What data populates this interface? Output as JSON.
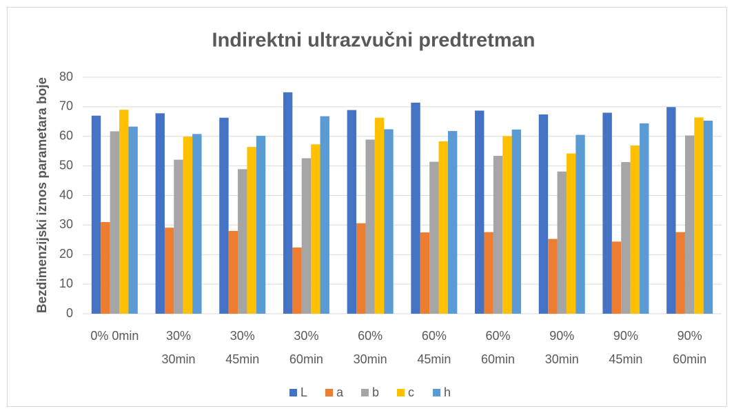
{
  "chart_data": {
    "type": "bar",
    "title": "Indirektni ultrazvučni predtretman",
    "y_label": "Bezdimenzijski iznos parametara boje",
    "categories": [
      "0% 0min",
      "30% 30min",
      "30% 45min",
      "30% 60min",
      "60% 30min",
      "60% 45min",
      "60% 60min",
      "90% 30min",
      "90% 45min",
      "90% 60min"
    ],
    "series": [
      {
        "name": "L",
        "color": "#4472c4",
        "values": [
          67,
          67.8,
          66.3,
          74.9,
          68.9,
          71.4,
          68.7,
          67.4,
          68,
          69.9
        ]
      },
      {
        "name": "a",
        "color": "#ed7d31",
        "values": [
          31,
          29.1,
          28,
          22.4,
          30.6,
          27.5,
          27.6,
          25.3,
          24.4,
          27.6
        ]
      },
      {
        "name": "b",
        "color": "#a5a5a5",
        "values": [
          61.7,
          52.1,
          48.9,
          52.6,
          58.9,
          51.4,
          53.4,
          48.1,
          51.3,
          60.3
        ]
      },
      {
        "name": "c",
        "color": "#ffc000",
        "values": [
          69,
          59.9,
          56.4,
          57.3,
          66.3,
          58.3,
          60.1,
          54.2,
          56.9,
          66.4
        ]
      },
      {
        "name": "h",
        "color": "#5b9bd5",
        "values": [
          63.3,
          60.8,
          60.2,
          66.8,
          62.4,
          61.8,
          62.3,
          60.5,
          64.4,
          65.3
        ]
      }
    ],
    "ylim": [
      0,
      80
    ],
    "yticks": [
      0,
      10,
      20,
      30,
      40,
      50,
      60,
      70,
      80
    ],
    "grid": true,
    "legend": "bottom"
  }
}
